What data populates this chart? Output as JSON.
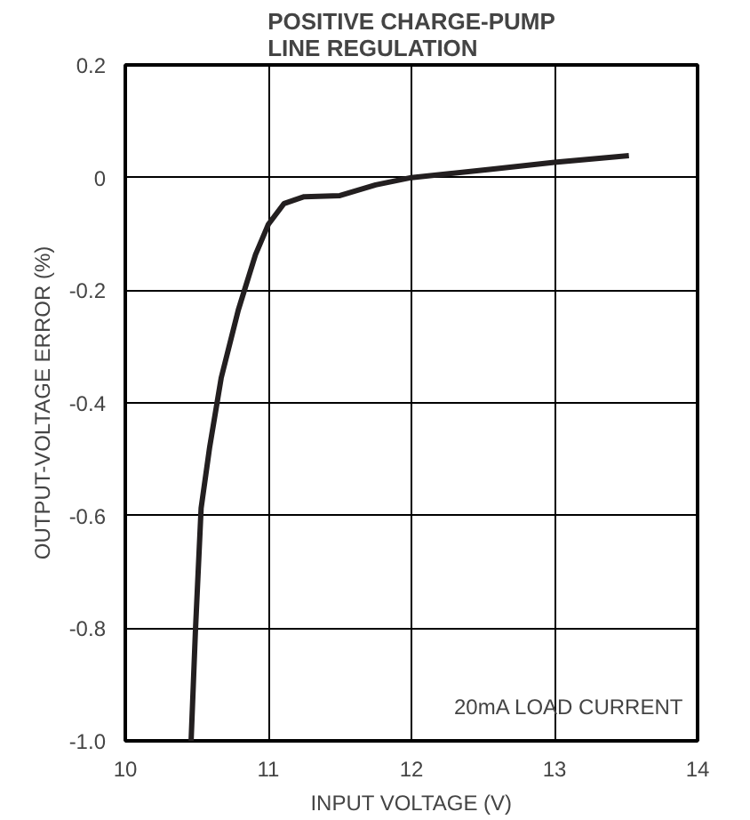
{
  "chart_data": {
    "type": "line",
    "title": "POSITIVE CHARGE-PUMP\nLINE REGULATION",
    "xlabel": "INPUT VOLTAGE (V)",
    "ylabel": "OUTPUT-VOLTAGE ERROR (%)",
    "annotations": [
      "20mA LOAD CURRENT"
    ],
    "x": [
      10.46,
      10.49,
      10.53,
      10.59,
      10.67,
      10.79,
      10.91,
      11.0,
      11.11,
      11.25,
      11.5,
      11.75,
      12.0,
      12.56,
      13.0,
      13.52
    ],
    "series": [
      {
        "color": "#231f20",
        "values": [
          -1.0,
          -0.806,
          -0.587,
          -0.478,
          -0.356,
          -0.235,
          -0.137,
          -0.083,
          -0.046,
          -0.034,
          -0.032,
          -0.013,
          0.0,
          0.015,
          0.027,
          0.039
        ]
      }
    ],
    "xlim": [
      10,
      14
    ],
    "ylim": [
      -1.0,
      0.2
    ],
    "xticks": [
      10,
      11,
      12,
      13,
      14
    ],
    "yticks": [
      0.2,
      0,
      -0.2,
      -0.4,
      -0.6,
      -0.8,
      {
        "value": -1.0,
        "label": "-1.0"
      }
    ],
    "grid": true,
    "marker": "none",
    "line_style": "solid"
  }
}
